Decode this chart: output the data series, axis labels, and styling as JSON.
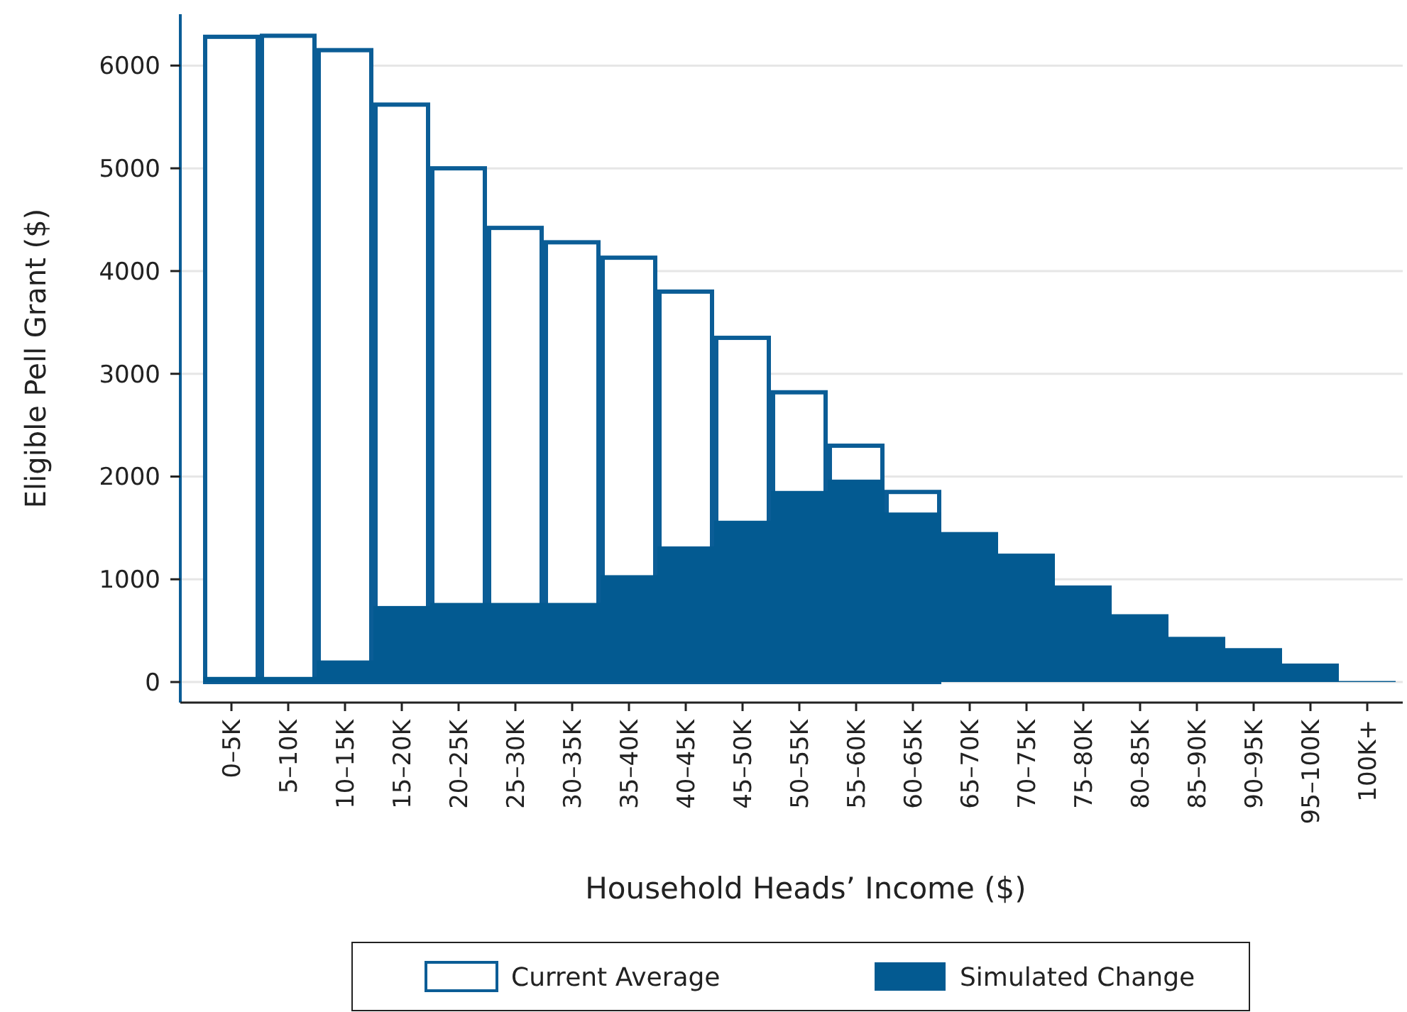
{
  "chart_data": {
    "type": "bar",
    "xlabel": "Household Heads’ Income ($)",
    "ylabel": "Eligible Pell Grant ($)",
    "categories": [
      "0–5K",
      "5–10K",
      "10–15K",
      "15–20K",
      "20–25K",
      "25–30K",
      "30–35K",
      "35–40K",
      "40–45K",
      "45–50K",
      "50–55K",
      "55–60K",
      "60–65K",
      "65–70K",
      "70–75K",
      "75–80K",
      "80–85K",
      "85–90K",
      "90–95K",
      "95–100K",
      "100K+"
    ],
    "series": [
      {
        "name": "Current Average",
        "color": "#ffffff",
        "values": [
          6280,
          6290,
          6150,
          5620,
          5000,
          4420,
          4280,
          4130,
          3800,
          3350,
          2820,
          2300,
          1850,
          null,
          null,
          null,
          null,
          null,
          null,
          null,
          null
        ]
      },
      {
        "name": "Simulated Change",
        "color": "#035a91",
        "values": [
          50,
          50,
          210,
          740,
          770,
          770,
          770,
          1040,
          1320,
          1570,
          1860,
          1970,
          1650,
          1460,
          1250,
          940,
          660,
          440,
          330,
          180,
          10
        ]
      }
    ],
    "ylim": [
      -200,
      6500
    ],
    "yticks": [
      0,
      1000,
      2000,
      3000,
      4000,
      5000,
      6000
    ],
    "grid": "y",
    "legend": "bottom"
  }
}
